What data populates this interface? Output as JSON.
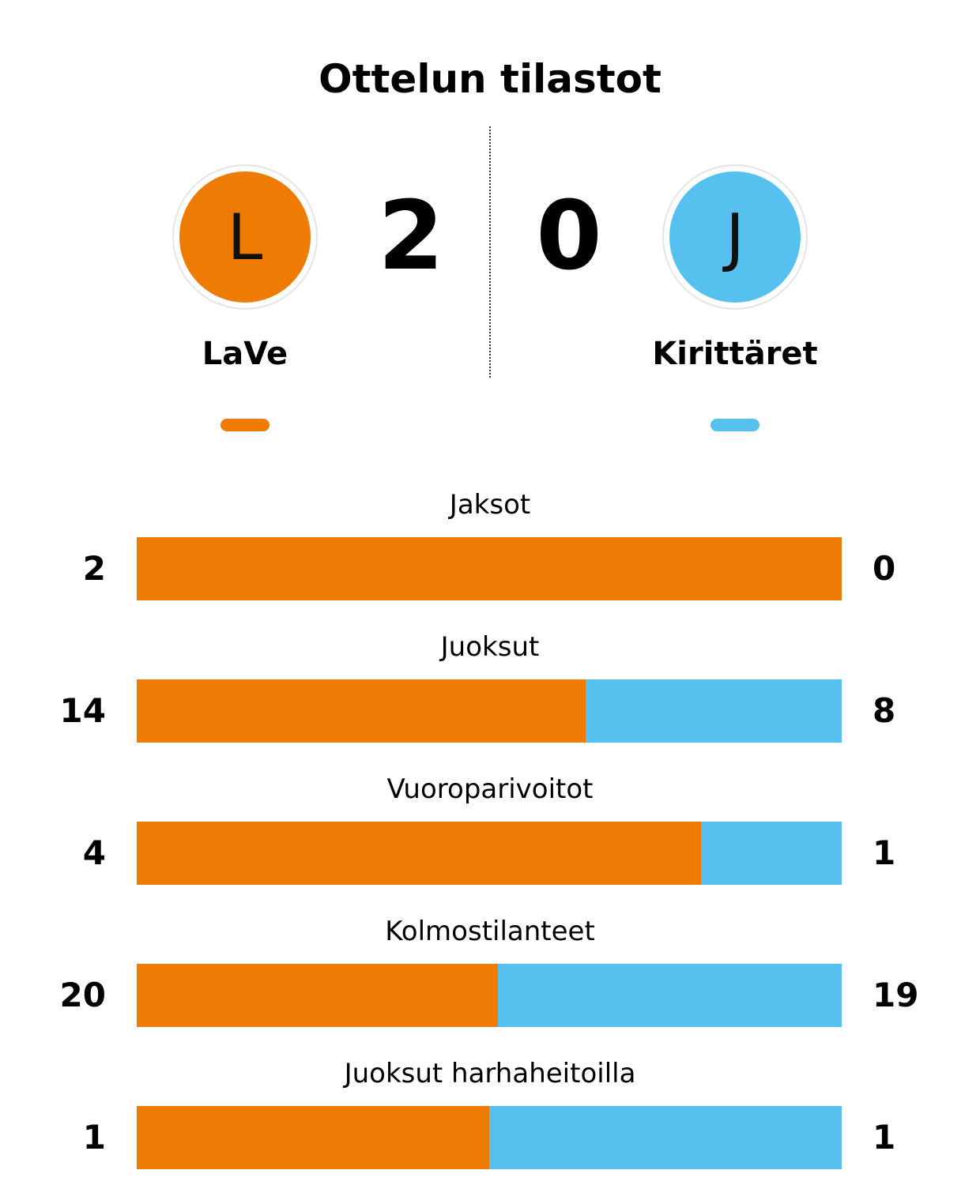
{
  "title": "Ottelun tilastot",
  "colors": {
    "home": "#EE7B04",
    "away": "#56C0EF"
  },
  "home": {
    "initial": "L",
    "name": "LaVe",
    "score": "2"
  },
  "away": {
    "initial": "J",
    "name": "Kirittäret",
    "score": "0"
  },
  "chart_data": {
    "type": "bar",
    "stacked": "percent",
    "orientation": "horizontal",
    "categories": [
      "Jaksot",
      "Juoksut",
      "Vuoroparivoitot",
      "Kolmostilanteet",
      "Juoksut harhaheitoilla"
    ],
    "series": [
      {
        "name": "LaVe",
        "values": [
          2,
          14,
          4,
          20,
          1
        ],
        "color": "#EE7B04"
      },
      {
        "name": "Kirittäret",
        "values": [
          0,
          8,
          1,
          19,
          1
        ],
        "color": "#56C0EF"
      }
    ],
    "labels_left": [
      "2",
      "14",
      "4",
      "20",
      "1"
    ],
    "labels_right": [
      "0",
      "8",
      "1",
      "19",
      "1"
    ]
  }
}
